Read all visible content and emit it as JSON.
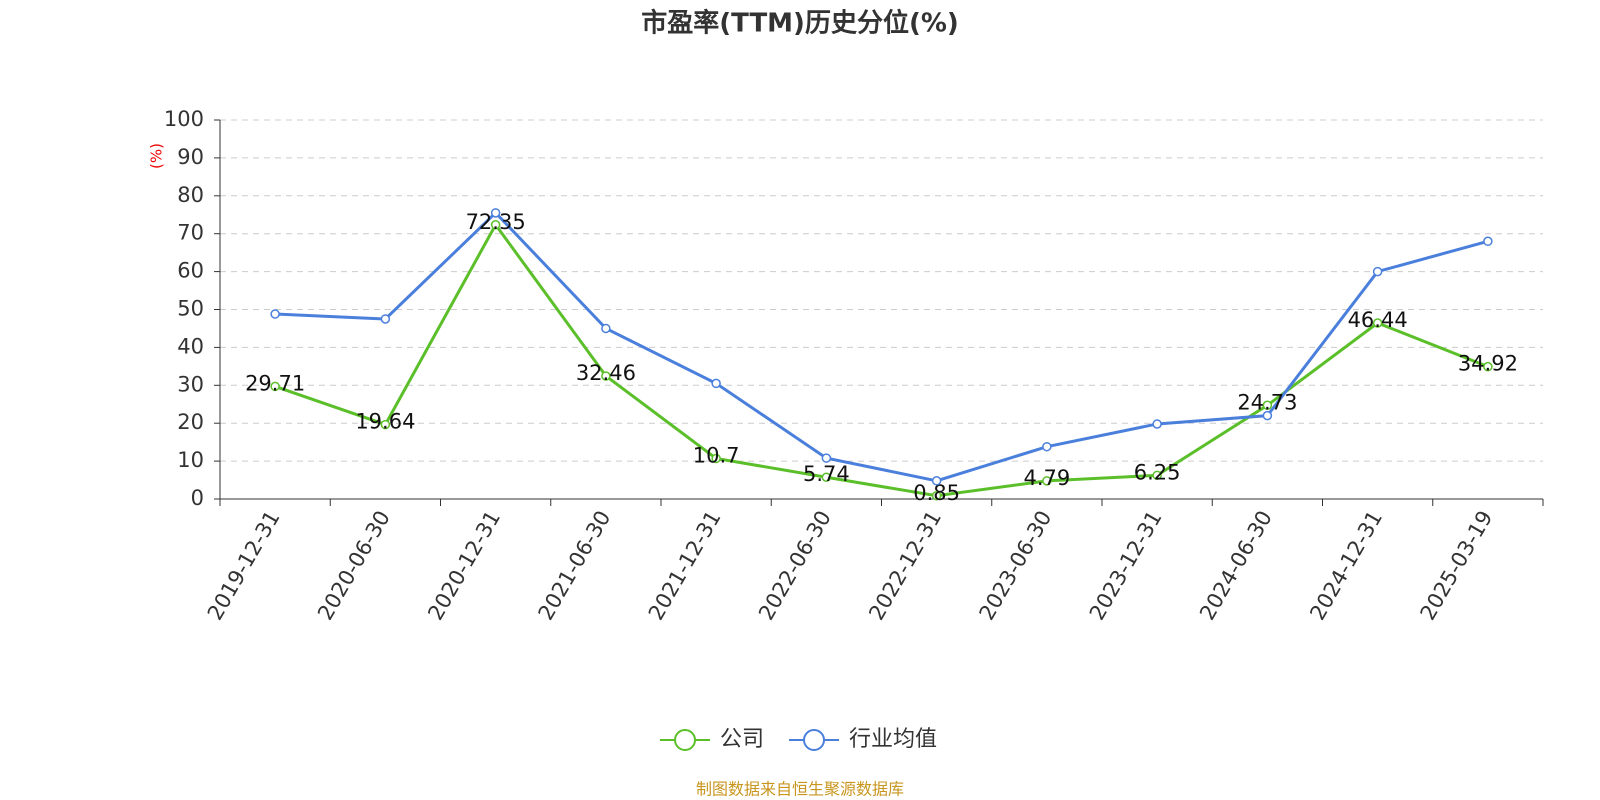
{
  "chart_data": {
    "type": "line",
    "title": "市盈率(TTM)历史分位(%)",
    "y_label": "(%)",
    "categories": [
      "2019-12-31",
      "2020-06-30",
      "2020-12-31",
      "2021-06-30",
      "2021-12-31",
      "2022-06-30",
      "2022-12-31",
      "2023-06-30",
      "2023-12-31",
      "2024-06-30",
      "2024-12-31",
      "2025-03-19"
    ],
    "series": [
      {
        "name": "公司",
        "color": "#5bbf2a",
        "values": [
          29.71,
          19.64,
          72.35,
          32.46,
          10.7,
          5.74,
          0.85,
          4.79,
          6.25,
          24.73,
          46.44,
          34.92
        ],
        "show_labels": true
      },
      {
        "name": "行业均值",
        "color": "#4a7fdc",
        "values": [
          48.8,
          47.5,
          75.5,
          45,
          30.5,
          10.8,
          4.8,
          13.8,
          19.8,
          22,
          60,
          68
        ],
        "show_labels": false
      }
    ],
    "ylim": [
      0,
      100
    ],
    "yticks": [
      0,
      10,
      20,
      30,
      40,
      50,
      60,
      70,
      80,
      90,
      100
    ],
    "grid": true,
    "legend": "bottom",
    "source": "制图数据来自恒生聚源数据库"
  }
}
